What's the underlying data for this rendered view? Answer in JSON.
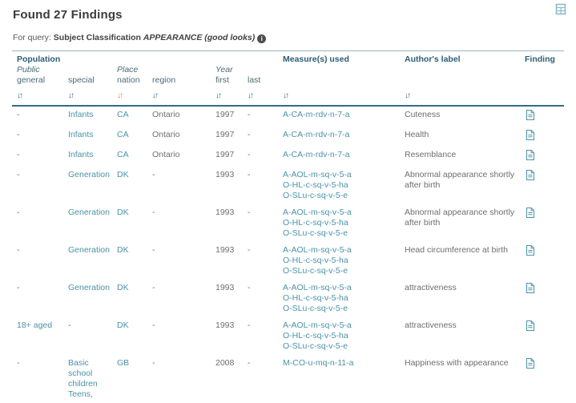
{
  "colors": {
    "accent": "#4a93a7",
    "header_text": "#2b5e76",
    "active_sort": "#e97e35",
    "muted_text": "#6d6e70",
    "header_border": "#2f6e86"
  },
  "icons": {
    "export": "export-spreadsheet-icon",
    "info": "i",
    "sort_glyph": "↓↑",
    "finding_doc": "document-page-icon"
  },
  "page": {
    "title": "Found 27 Findings",
    "query": {
      "prefix": "For query:",
      "label": "Subject Classification",
      "value": "APPEARANCE (good looks)"
    }
  },
  "table": {
    "header": {
      "population": "Population",
      "public": "Public",
      "place": "Place",
      "year": "Year",
      "columns": {
        "general": "general",
        "special": "special",
        "nation": "nation",
        "region": "region",
        "first": "first",
        "last": "last"
      },
      "measures": "Measure(s) used",
      "authors_label": "Author's label",
      "finding": "Finding",
      "active_sort": "nation"
    },
    "rows": [
      {
        "general": "-",
        "special": [
          "Infants"
        ],
        "nation": "CA",
        "region": "Ontario",
        "first": "1997",
        "last": "-",
        "measures": [
          "A-CA-m-rdv-n-7-a"
        ],
        "label": "Cuteness"
      },
      {
        "general": "-",
        "special": [
          "Infants"
        ],
        "nation": "CA",
        "region": "Ontario",
        "first": "1997",
        "last": "-",
        "measures": [
          "A-CA-m-rdv-n-7-a"
        ],
        "label": "Health"
      },
      {
        "general": "-",
        "special": [
          "Infants"
        ],
        "nation": "CA",
        "region": "Ontario",
        "first": "1997",
        "last": "-",
        "measures": [
          "A-CA-m-rdv-n-7-a"
        ],
        "label": "Resemblance"
      },
      {
        "general": "-",
        "special": [
          "Generation"
        ],
        "nation": "DK",
        "region": "-",
        "first": "1993",
        "last": "-",
        "measures": [
          "A-AOL-m-sq-v-5-a",
          "O-HL-c-sq-v-5-ha",
          "O-SLu-c-sq-v-5-e"
        ],
        "label": "Abnormal appearance shortly after birth"
      },
      {
        "general": "-",
        "special": [
          "Generation"
        ],
        "nation": "DK",
        "region": "-",
        "first": "1993",
        "last": "-",
        "measures": [
          "A-AOL-m-sq-v-5-a",
          "O-HL-c-sq-v-5-ha",
          "O-SLu-c-sq-v-5-e"
        ],
        "label": "Abnormal appearance shortly after birth"
      },
      {
        "general": "-",
        "special": [
          "Generation"
        ],
        "nation": "DK",
        "region": "-",
        "first": "1993",
        "last": "-",
        "measures": [
          "A-AOL-m-sq-v-5-a",
          "O-HL-c-sq-v-5-ha",
          "O-SLu-c-sq-v-5-e"
        ],
        "label": "Head circumference at birth"
      },
      {
        "general": "-",
        "special": [
          "Generation"
        ],
        "nation": "DK",
        "region": "-",
        "first": "1993",
        "last": "-",
        "measures": [
          "A-AOL-m-sq-v-5-a",
          "O-HL-c-sq-v-5-ha",
          "O-SLu-c-sq-v-5-e"
        ],
        "label": "attractiveness"
      },
      {
        "general": "18+ aged",
        "special": [
          "-"
        ],
        "nation": "DK",
        "region": "-",
        "first": "1993",
        "last": "-",
        "measures": [
          "A-AOL-m-sq-v-5-a",
          "O-HL-c-sq-v-5-ha",
          "O-SLu-c-sq-v-5-e"
        ],
        "label": "attractiveness"
      },
      {
        "general": "-",
        "special": [
          "Basic school children",
          "Teens,"
        ],
        "nation": "GB",
        "region": "-",
        "first": "2008",
        "last": "-",
        "measures": [
          "M-CO-u-mq-n-11-a"
        ],
        "label": "Happiness with appearance"
      }
    ]
  }
}
